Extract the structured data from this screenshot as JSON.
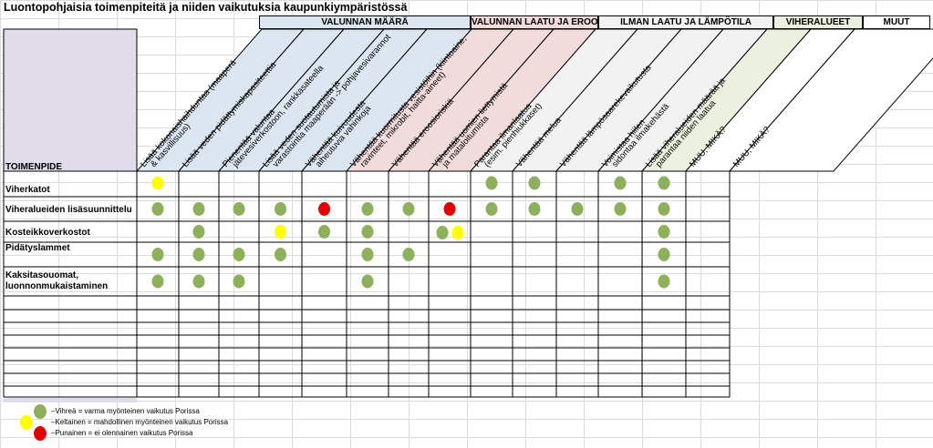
{
  "title": "Luontopohjaisia toimenpiteitä ja niiden vaikutuksia kaupunkiympäristössä",
  "categories": [
    {
      "label": "VALUNNAN MÄÄRÄ",
      "color": "#dce6f1"
    },
    {
      "label": "VALUNNAN LAATU JA EROOSIO",
      "color": "#f2dcdb"
    },
    {
      "label": "ILMAN LAATU JA LÄMPÖTILA",
      "color": "#f2f2f2"
    },
    {
      "label": "VIHERALUEET",
      "color": "#ebf1de"
    },
    {
      "label": "MUUT",
      "color": "#ffffff"
    }
  ],
  "toimenpide_header": "TOIMENPIDE",
  "columns": [
    "Lisää kokonaishaihduntaa (maaperä & kasvillisuus)",
    "Lisää veden pidättymiskapasiteettia",
    "Pienentää valuntaa jätevesiverkostoon, rankkasateella",
    "Lisää veden suotautumista ja varastointia maaperään -> pohjavesivarannot",
    "Vähentää kuivuudesta aiheutuvia vahinkoja",
    "Vähentää kuormitusta vesistöihin (kiintoaine, ravinteet, mikrobit, haitta-aineet)",
    "Vähentää eroosioriskiä",
    "Vähentää uomien liettymistä ja mataloitumista",
    "Parantaa ilmanlaatua (esim. pienhiukkaset)",
    "Vähentää melua",
    "Vähentää lämpösaarekevaikutusta",
    "Voimistaa hiilen sidontaa ilmakehästä",
    "Lisää viheralueiden määrää ja parantaa niiden laatua",
    "MUU, MIKÄ?",
    "MUU, MIKÄ?"
  ],
  "rows": [
    {
      "label": "Viherkatot",
      "dots": [
        {
          "col": 0,
          "c": "Y"
        },
        {
          "col": 8,
          "c": "G"
        },
        {
          "col": 9,
          "c": "G"
        },
        {
          "col": 11,
          "c": "G"
        },
        {
          "col": 12,
          "c": "G"
        }
      ]
    },
    {
      "label": "Viheralueiden lisäsuunnittelu",
      "dots": [
        {
          "col": 0,
          "c": "G"
        },
        {
          "col": 1,
          "c": "G"
        },
        {
          "col": 2,
          "c": "G"
        },
        {
          "col": 3,
          "c": "G"
        },
        {
          "col": 4,
          "c": "R"
        },
        {
          "col": 5,
          "c": "G"
        },
        {
          "col": 6,
          "c": "G"
        },
        {
          "col": 7,
          "c": "R"
        },
        {
          "col": 8,
          "c": "G"
        },
        {
          "col": 9,
          "c": "G"
        },
        {
          "col": 10,
          "c": "G"
        },
        {
          "col": 11,
          "c": "G"
        },
        {
          "col": 12,
          "c": "G"
        }
      ]
    },
    {
      "label": "Kosteikkoverkostot",
      "dots": [
        {
          "col": 1,
          "c": "G"
        },
        {
          "col": 3,
          "c": "Y"
        },
        {
          "col": 4,
          "c": "G"
        },
        {
          "col": 5,
          "c": "G"
        },
        {
          "col": 7,
          "c": "GY"
        },
        {
          "col": 12,
          "c": "G"
        }
      ]
    },
    {
      "label": "Pidätyslammet",
      "dots": [
        {
          "col": 0,
          "c": "G"
        },
        {
          "col": 1,
          "c": "G"
        },
        {
          "col": 2,
          "c": "G"
        },
        {
          "col": 3,
          "c": "G"
        },
        {
          "col": 5,
          "c": "G"
        },
        {
          "col": 6,
          "c": "G"
        },
        {
          "col": 12,
          "c": "G"
        }
      ]
    },
    {
      "label": "Kaksitasouomat, luonnonmukaistaminen",
      "dots": [
        {
          "col": 0,
          "c": "G"
        },
        {
          "col": 1,
          "c": "G"
        },
        {
          "col": 2,
          "c": "G"
        },
        {
          "col": 5,
          "c": "G"
        },
        {
          "col": 12,
          "c": "G"
        }
      ]
    }
  ],
  "empty_rows": 8,
  "legend": [
    {
      "c": "G",
      "text": "–Vihreä  = varma myönteinen vaikutus Porissa"
    },
    {
      "c": "Y",
      "text": "–Keltainen = mahdollinen myönteinen vaikutus Porissa"
    },
    {
      "c": "R",
      "text": "–Punainen = ei olennainen vaikutus Porissa"
    }
  ],
  "colors": {
    "G": "#8db05a",
    "Y": "#ffff00",
    "R": "#e00000",
    "header_purple": "#e0dcea"
  }
}
